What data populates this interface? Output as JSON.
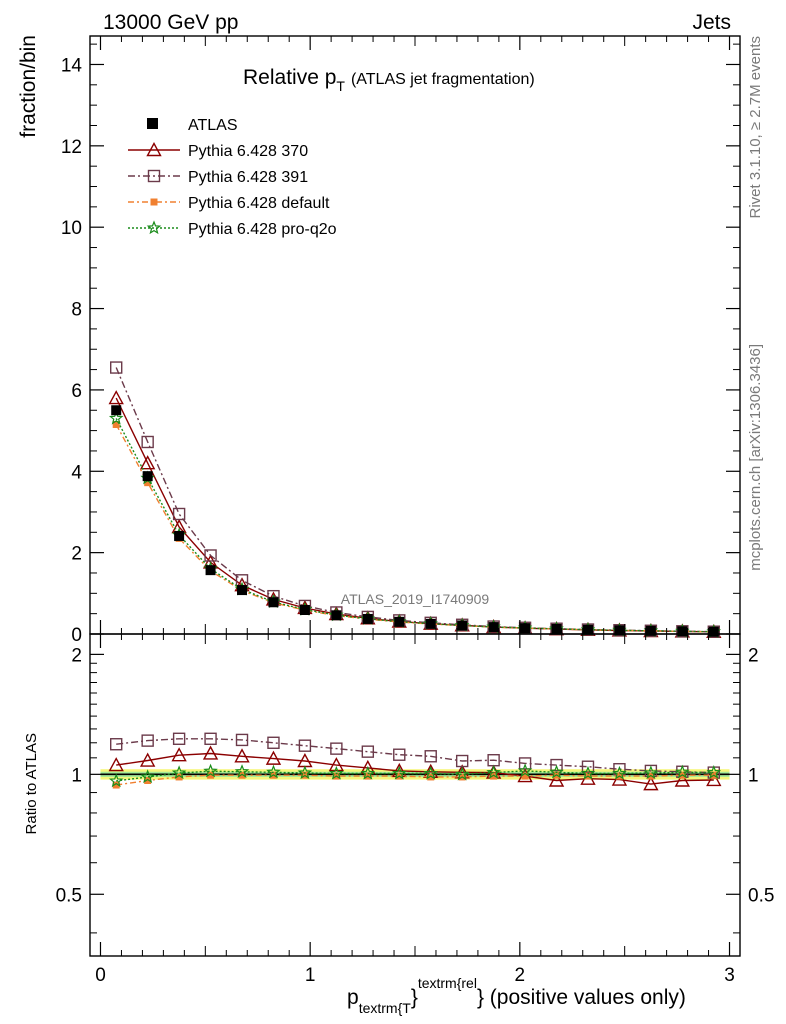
{
  "header": {
    "left": "13000 GeV pp",
    "right": "Jets"
  },
  "side_labels": {
    "top": "Rivet 3.1.10, ≥ 2.7M events",
    "bottom": "mcplots.cern.ch [arXiv:1306.3436]"
  },
  "chart_data": {
    "type": "line",
    "title": {
      "main": "Relative p",
      "sub": "T",
      "rest": "(ATLAS jet fragmentation)"
    },
    "watermark": "ATLAS_2019_I1740909",
    "xlabel": {
      "p": "p",
      "sub": "textrm{T",
      "sup": "textrm{rel",
      "rest": "} (positive values only)"
    },
    "ylabel": "fraction/bin",
    "ratio_ylabel": "Ratio to ATLAS",
    "xlim": [
      -0.05,
      3.05
    ],
    "ylim": [
      0,
      14.7
    ],
    "ratio_ylim": [
      0.35,
      2.25
    ],
    "x_ticks": [
      0,
      1,
      2,
      3
    ],
    "x_tick_labels": [
      "0",
      "1",
      "2",
      "3"
    ],
    "y_ticks": [
      0,
      2,
      4,
      6,
      8,
      10,
      12,
      14
    ],
    "y_tick_labels": [
      "0",
      "2",
      "4",
      "6",
      "8",
      "10",
      "12",
      "14"
    ],
    "ratio_ticks": [
      0.5,
      1,
      2
    ],
    "ratio_tick_labels": [
      "0.5",
      "1",
      "2"
    ],
    "x": [
      0.075,
      0.225,
      0.375,
      0.525,
      0.675,
      0.825,
      0.975,
      1.125,
      1.275,
      1.425,
      1.575,
      1.725,
      1.875,
      2.025,
      2.175,
      2.325,
      2.475,
      2.625,
      2.775,
      2.925
    ],
    "bin_width": 0.15,
    "series": [
      {
        "name": "ATLAS",
        "kind": "data",
        "color": "#000000",
        "values": [
          5.5,
          3.88,
          2.41,
          1.57,
          1.08,
          0.78,
          0.59,
          0.46,
          0.37,
          0.3,
          0.25,
          0.21,
          0.17,
          0.145,
          0.125,
          0.105,
          0.09,
          0.078,
          0.066,
          0.056
        ]
      },
      {
        "name": "Pythia 6.428 370",
        "kind": "mc",
        "color": "#8b0000",
        "marker": "triangle",
        "dash": "",
        "values": [
          5.8,
          4.2,
          2.63,
          1.76,
          1.2,
          0.85,
          0.64,
          0.49,
          0.385,
          0.305,
          0.254,
          0.213,
          0.172,
          0.143,
          0.12,
          0.102,
          0.087,
          0.074,
          0.064,
          0.054
        ],
        "ratio": [
          1.055,
          1.083,
          1.117,
          1.128,
          1.11,
          1.095,
          1.08,
          1.055,
          1.038,
          1.02,
          1.015,
          1.012,
          1.01,
          0.99,
          0.965,
          0.975,
          0.97,
          0.945,
          0.965,
          0.968
        ]
      },
      {
        "name": "Pythia 6.428 391",
        "kind": "mc",
        "color": "#6b3a4a",
        "marker": "square-open",
        "dash": "7 3 2 3",
        "values": [
          6.55,
          4.72,
          2.95,
          1.93,
          1.32,
          0.93,
          0.69,
          0.53,
          0.42,
          0.335,
          0.275,
          0.227,
          0.183,
          0.153,
          0.13,
          0.11,
          0.093,
          0.08,
          0.067,
          0.057
        ],
        "ratio": [
          1.19,
          1.215,
          1.228,
          1.228,
          1.22,
          1.2,
          1.18,
          1.16,
          1.14,
          1.12,
          1.11,
          1.08,
          1.085,
          1.065,
          1.055,
          1.045,
          1.03,
          1.02,
          1.015,
          1.01
        ]
      },
      {
        "name": "Pythia 6.428 default",
        "kind": "mc",
        "color": "#f08030",
        "marker": "square-filled",
        "dash": "6 3 2 3",
        "values": [
          5.15,
          3.72,
          2.35,
          1.55,
          1.07,
          0.77,
          0.585,
          0.455,
          0.365,
          0.296,
          0.245,
          0.207,
          0.168,
          0.144,
          0.124,
          0.104,
          0.089,
          0.077,
          0.065,
          0.055
        ],
        "ratio": [
          0.94,
          0.965,
          0.985,
          0.995,
          0.995,
          0.995,
          0.995,
          0.99,
          0.99,
          0.99,
          0.985,
          0.985,
          0.99,
          0.99,
          0.995,
          0.99,
          0.99,
          0.99,
          0.995,
          0.995
        ]
      },
      {
        "name": "Pythia 6.428 pro-q2o",
        "kind": "mc",
        "color": "#1a8c1a",
        "marker": "star",
        "dash": "2 2",
        "values": [
          5.3,
          3.83,
          2.43,
          1.6,
          1.1,
          0.79,
          0.6,
          0.465,
          0.373,
          0.302,
          0.252,
          0.21,
          0.172,
          0.148,
          0.127,
          0.106,
          0.091,
          0.079,
          0.067,
          0.057
        ],
        "ratio": [
          0.962,
          0.985,
          1.008,
          1.018,
          1.015,
          1.012,
          1.008,
          1.005,
          1.005,
          1.005,
          1.005,
          1.0,
          1.01,
          1.02,
          1.012,
          1.005,
          1.005,
          1.008,
          1.012,
          1.01
        ]
      }
    ]
  }
}
